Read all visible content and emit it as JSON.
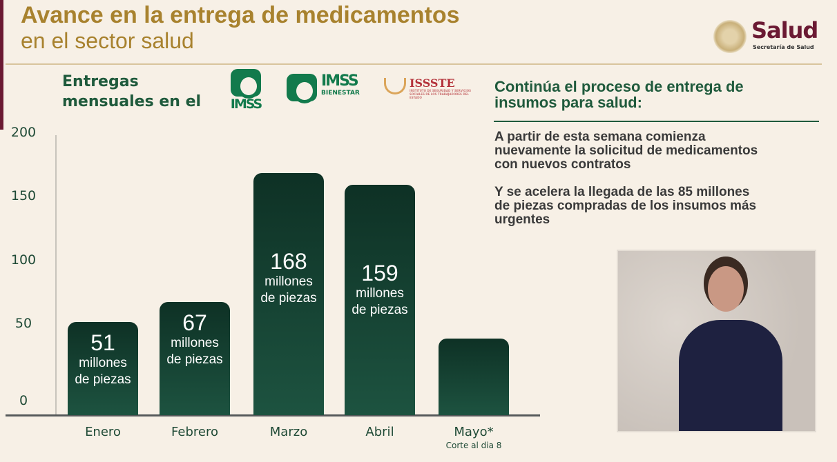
{
  "header": {
    "title": "Avance en la entrega de medicamentos",
    "subtitle": "en el sector salud",
    "brand": "Salud",
    "brand_sub": "Secretaría de Salud"
  },
  "left": {
    "heading_line1": "Entregas",
    "heading_line2": "mensuales en el",
    "logos": {
      "imss": "IMSS",
      "imss_bienestar_1": "IMSS",
      "imss_bienestar_2": "BIENESTAR",
      "issste": "ISSSTE",
      "issste_sub": "INSTITUTO DE SEGURIDAD Y SERVICIOS SOCIALES DE LOS TRABAJADORES DEL ESTADO"
    }
  },
  "chart_data": {
    "type": "bar",
    "categories": [
      "Enero",
      "Febrero",
      "Marzo",
      "Abril",
      "Mayo*"
    ],
    "category_notes": [
      "",
      "",
      "",
      "",
      "Corte al dia 8"
    ],
    "values": [
      51,
      67,
      168,
      159,
      38
    ],
    "value_unit_line1": "millones",
    "value_unit_line2": "de piezas",
    "yticks": [
      0,
      50,
      100,
      150,
      200
    ],
    "ylim": [
      0,
      200
    ],
    "bar_color": "#1a4a38",
    "grid": false
  },
  "right": {
    "title_line1": "Continúa el proceso de entrega de",
    "title_line2": "insumos para salud:",
    "p1": [
      "A partir de esta semana comienza",
      "nuevamente la solicitud de medicamentos",
      "con nuevos contratos"
    ],
    "p2": [
      "Y se acelera la llegada de las 85 millones",
      "de piezas compradas de los insumos más",
      "urgentes"
    ]
  }
}
